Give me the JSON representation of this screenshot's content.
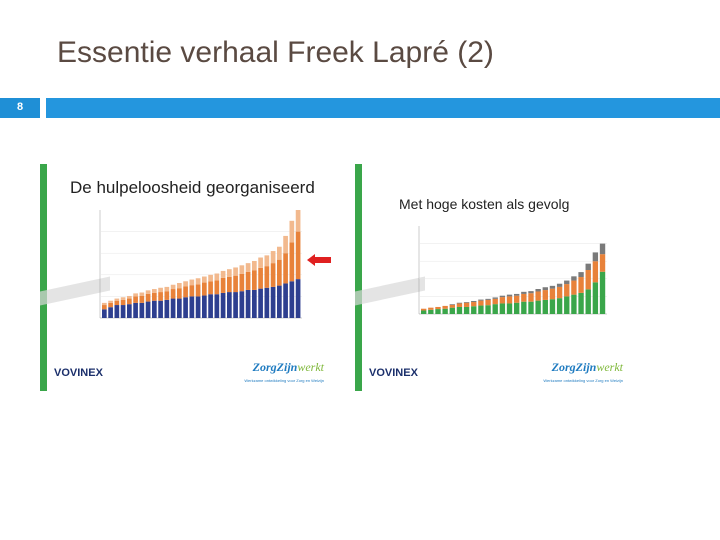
{
  "slide": {
    "title": "Essentie verhaal Freek Lapré (2)",
    "page_number": "8"
  },
  "left_image": {
    "title": "De hulpeloosheid georganiseerd",
    "logo_left": "VOVINEX",
    "logo_right_a": "ZorgZijn",
    "logo_right_b": "werkt",
    "logo_sub": "Werkzame ontwikkeling voor Zorg en Welzijn"
  },
  "right_image": {
    "title": "Met hoge kosten als gevolg",
    "logo_left": "VOVINEX",
    "logo_right_a": "ZorgZijn",
    "logo_right_b": "werkt",
    "logo_sub": "Werkzame ontwikkeling voor Zorg en Welzijn"
  },
  "colors": {
    "header_bar": "#2496de",
    "title_text": "#5a4a42",
    "bar_dark": "#2e3f8f",
    "bar_orange": "#e8823a",
    "bar_peach": "#f2b98e",
    "bar_green": "#3aa64a",
    "bar_gray": "#7a7a7a",
    "arrow_red": "#e02020"
  },
  "icons": {
    "arrow": "red-arrow-left-icon"
  },
  "chart_data": [
    {
      "type": "bar",
      "stacked": true,
      "series_count": 3,
      "values": [
        [
          2,
          1,
          0.5
        ],
        [
          2.5,
          1,
          0.5
        ],
        [
          3,
          1,
          0.5
        ],
        [
          3,
          1.2,
          0.6
        ],
        [
          3.2,
          1.3,
          0.6
        ],
        [
          3.5,
          1.5,
          0.7
        ],
        [
          3.5,
          1.6,
          0.8
        ],
        [
          3.8,
          1.8,
          0.8
        ],
        [
          4,
          1.8,
          0.9
        ],
        [
          4,
          2,
          1
        ],
        [
          4.2,
          2,
          1
        ],
        [
          4.5,
          2.2,
          1
        ],
        [
          4.5,
          2.4,
          1.2
        ],
        [
          4.8,
          2.5,
          1.2
        ],
        [
          5,
          2.6,
          1.3
        ],
        [
          5,
          2.8,
          1.4
        ],
        [
          5.2,
          3,
          1.4
        ],
        [
          5.5,
          3,
          1.5
        ],
        [
          5.5,
          3.2,
          1.6
        ],
        [
          5.8,
          3.5,
          1.6
        ],
        [
          6,
          3.5,
          1.8
        ],
        [
          6,
          3.8,
          1.9
        ],
        [
          6.2,
          4,
          2
        ],
        [
          6.5,
          4.2,
          2
        ],
        [
          6.5,
          4.5,
          2.2
        ],
        [
          6.8,
          4.8,
          2.4
        ],
        [
          7,
          5,
          2.5
        ],
        [
          7.2,
          5.5,
          2.8
        ],
        [
          7.5,
          6,
          3
        ],
        [
          8,
          7,
          4
        ],
        [
          8.5,
          9,
          5
        ],
        [
          9,
          11,
          7
        ]
      ],
      "ylim": [
        0,
        25
      ]
    },
    {
      "type": "bar",
      "stacked": true,
      "series_count": 3,
      "values": [
        [
          1,
          0.5,
          0
        ],
        [
          1.2,
          0.6,
          0
        ],
        [
          1.4,
          0.6,
          0
        ],
        [
          1.5,
          0.8,
          0
        ],
        [
          1.8,
          0.8,
          0.2
        ],
        [
          2,
          1,
          0.2
        ],
        [
          2,
          1.2,
          0.2
        ],
        [
          2.2,
          1.2,
          0.3
        ],
        [
          2.4,
          1.4,
          0.3
        ],
        [
          2.5,
          1.5,
          0.3
        ],
        [
          2.8,
          1.5,
          0.4
        ],
        [
          3,
          1.8,
          0.4
        ],
        [
          3,
          2,
          0.5
        ],
        [
          3.2,
          2,
          0.5
        ],
        [
          3.5,
          2.2,
          0.6
        ],
        [
          3.5,
          2.4,
          0.6
        ],
        [
          3.8,
          2.6,
          0.7
        ],
        [
          4,
          2.8,
          0.8
        ],
        [
          4.2,
          3,
          0.8
        ],
        [
          4.5,
          3.2,
          0.9
        ],
        [
          5,
          3.5,
          1
        ],
        [
          5.5,
          4,
          1.2
        ],
        [
          6,
          4.5,
          1.4
        ],
        [
          7,
          5.5,
          1.8
        ],
        [
          9,
          6,
          2.5
        ],
        [
          12,
          5,
          3
        ]
      ],
      "ylim": [
        0,
        25
      ]
    }
  ]
}
